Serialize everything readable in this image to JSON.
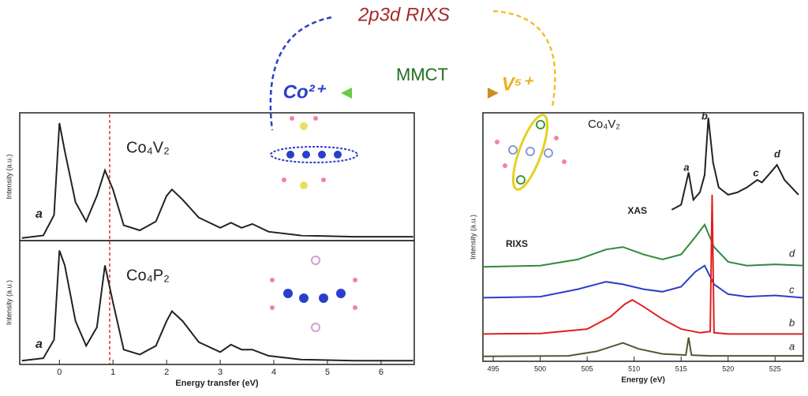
{
  "diagram": {
    "title": "2p3d RIXS",
    "left_ion": "Co²⁺",
    "transfer": "MMCT",
    "right_ion": "V⁵⁺"
  },
  "chart_data": [
    {
      "type": "line",
      "label": "Co₄V₂",
      "annotation": "a",
      "ylabel": "Intensity (a.u.)",
      "color": "#222222",
      "x": [
        -0.7,
        -0.3,
        -0.1,
        0,
        0.1,
        0.3,
        0.5,
        0.7,
        0.85,
        1.0,
        1.2,
        1.5,
        1.8,
        2.0,
        2.1,
        2.3,
        2.6,
        3.0,
        3.2,
        3.4,
        3.6,
        3.9,
        4.5,
        5.5,
        6.6
      ],
      "values": [
        0.2,
        0.4,
        2,
        9.2,
        7,
        3,
        1.5,
        3.5,
        5.5,
        4,
        1.2,
        0.8,
        1.5,
        3.5,
        4,
        3.2,
        1.8,
        1,
        1.4,
        1,
        1.3,
        0.7,
        0.4,
        0.3,
        0.3
      ],
      "xlim": [
        -0.74,
        6.62
      ],
      "ylim": [
        0,
        10
      ]
    },
    {
      "type": "line",
      "label": "Co₄P₂",
      "annotation": "a",
      "ylabel": "Intensity (a.u.)",
      "xlabel": "Energy transfer (eV)",
      "color": "#222222",
      "x": [
        -0.7,
        -0.3,
        -0.1,
        0,
        0.1,
        0.3,
        0.5,
        0.7,
        0.85,
        1.0,
        1.2,
        1.5,
        1.8,
        2.0,
        2.1,
        2.3,
        2.6,
        3.0,
        3.2,
        3.4,
        3.6,
        3.9,
        4.5,
        5.5,
        6.6
      ],
      "values": [
        0.3,
        0.5,
        2,
        9.2,
        8,
        3.5,
        1.5,
        3,
        8,
        5,
        1.2,
        0.8,
        1.5,
        3.5,
        4.3,
        3.5,
        1.8,
        1,
        1.6,
        1.2,
        1.2,
        0.7,
        0.4,
        0.3,
        0.3
      ],
      "xlim": [
        -0.74,
        6.62
      ],
      "ylim": [
        0,
        10
      ],
      "xticks": [
        0,
        1,
        2,
        3,
        4,
        5,
        6
      ]
    },
    {
      "type": "line",
      "label": "Co₄V₂",
      "ylabel": "Intensity (a.u.)",
      "xlabel": "Energy (eV)",
      "subtitle": "RIXS",
      "annotations": [
        "a",
        "b",
        "c",
        "d"
      ],
      "xlim": [
        493.9,
        528
      ],
      "ylim": [
        0,
        10
      ],
      "xticks": [
        495,
        500,
        505,
        510,
        515,
        520,
        525
      ],
      "series": [
        {
          "name": "XAS",
          "color": "#222222",
          "x": [
            514,
            515,
            515.8,
            516.3,
            517,
            517.5,
            517.9,
            518.4,
            519,
            520,
            521,
            522,
            523.1,
            523.6,
            524.3,
            525.2,
            526,
            527.5
          ],
          "values": [
            6.1,
            6.3,
            7.6,
            6.5,
            6.8,
            7.5,
            9.8,
            8.0,
            7.0,
            6.7,
            6.8,
            7.0,
            7.3,
            7.2,
            7.5,
            7.9,
            7.3,
            6.7
          ]
        },
        {
          "name": "d",
          "color": "#2e8b3a",
          "x": [
            493.9,
            500,
            504,
            507,
            508.8,
            511,
            513,
            515,
            516.5,
            517.5,
            518.5,
            520,
            522,
            525,
            528
          ],
          "values": [
            3.8,
            3.85,
            4.1,
            4.5,
            4.6,
            4.3,
            4.1,
            4.3,
            5.0,
            5.5,
            4.6,
            4.0,
            3.85,
            3.9,
            3.85
          ]
        },
        {
          "name": "c",
          "color": "#2a3fc9",
          "x": [
            493.9,
            500,
            504,
            507,
            508.8,
            511,
            513,
            515,
            516.5,
            517.5,
            518.5,
            520,
            522,
            525,
            528
          ],
          "values": [
            2.56,
            2.6,
            2.9,
            3.2,
            3.1,
            2.9,
            2.8,
            3.0,
            3.6,
            3.85,
            3.1,
            2.7,
            2.6,
            2.65,
            2.56
          ]
        },
        {
          "name": "b",
          "color": "#e02020",
          "x": [
            493.9,
            500,
            505,
            507.5,
            509,
            509.8,
            511,
            513,
            515,
            517,
            518.1,
            518.3,
            518.5,
            520,
            528
          ],
          "values": [
            1.1,
            1.12,
            1.3,
            1.8,
            2.3,
            2.47,
            2.2,
            1.7,
            1.3,
            1.15,
            1.2,
            6.7,
            1.15,
            1.1,
            1.1
          ]
        },
        {
          "name": "a",
          "color": "#555533",
          "x": [
            493.9,
            503,
            506,
            508.8,
            510.5,
            513,
            515.5,
            515.8,
            516.1,
            518,
            528
          ],
          "values": [
            0.2,
            0.22,
            0.4,
            0.74,
            0.5,
            0.3,
            0.25,
            0.96,
            0.25,
            0.22,
            0.22
          ]
        }
      ]
    }
  ]
}
